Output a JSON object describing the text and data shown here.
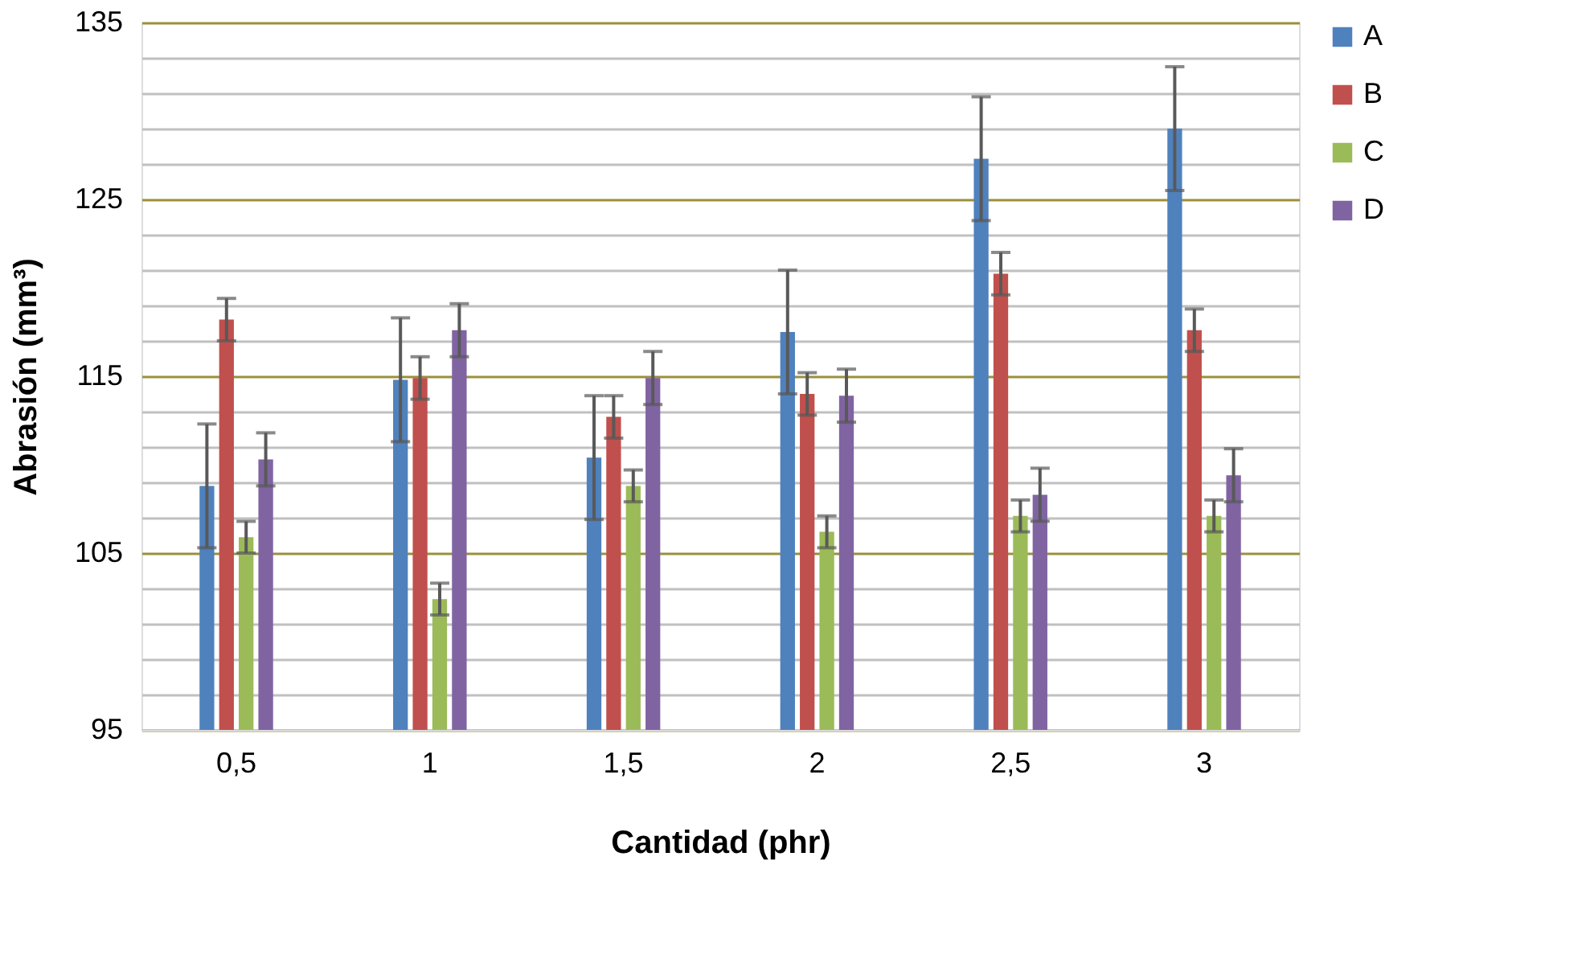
{
  "chart_data": {
    "type": "bar",
    "xlabel": "Cantidad (phr)",
    "ylabel": "Abrasión (mm³)",
    "categories": [
      "0,5",
      "1",
      "1,5",
      "2",
      "2,5",
      "3"
    ],
    "series": [
      {
        "name": "A",
        "color": "#4f81bd",
        "values": [
          108.8,
          114.8,
          110.4,
          117.5,
          127.3,
          129.0
        ],
        "errors": [
          3.5,
          3.5,
          3.5,
          3.5,
          3.5,
          3.5
        ]
      },
      {
        "name": "B",
        "color": "#c0504d",
        "values": [
          118.2,
          114.9,
          112.7,
          114.0,
          120.8,
          117.6
        ],
        "errors": [
          1.2,
          1.2,
          1.2,
          1.2,
          1.2,
          1.2
        ]
      },
      {
        "name": "C",
        "color": "#9bbb59",
        "values": [
          105.9,
          102.4,
          108.8,
          106.2,
          107.1,
          107.1
        ],
        "errors": [
          0.9,
          0.9,
          0.9,
          0.9,
          0.9,
          0.9
        ]
      },
      {
        "name": "D",
        "color": "#8064a2",
        "values": [
          110.3,
          117.6,
          114.9,
          113.9,
          108.3,
          109.4
        ],
        "errors": [
          1.5,
          1.5,
          1.5,
          1.5,
          1.5,
          1.5
        ]
      }
    ],
    "ylim": [
      95,
      135
    ],
    "yticks": [
      95,
      {
        "value": 97,
        "label": null
      },
      {
        "value": 99,
        "label": null
      },
      {
        "value": 101,
        "label": null
      },
      {
        "value": 103,
        "label": null
      },
      105,
      {
        "value": 107,
        "label": null
      },
      {
        "value": 109,
        "label": null
      },
      {
        "value": 111,
        "label": null
      },
      {
        "value": 113,
        "label": null
      },
      115,
      {
        "value": 117,
        "label": null
      },
      {
        "value": 119,
        "label": null
      },
      {
        "value": 121,
        "label": null
      },
      {
        "value": 123,
        "label": null
      },
      125,
      {
        "value": 127,
        "label": null
      },
      {
        "value": 129,
        "label": null
      },
      {
        "value": 131,
        "label": null
      },
      {
        "value": 133,
        "label": null
      },
      135
    ],
    "grid": true,
    "legend": "right"
  }
}
